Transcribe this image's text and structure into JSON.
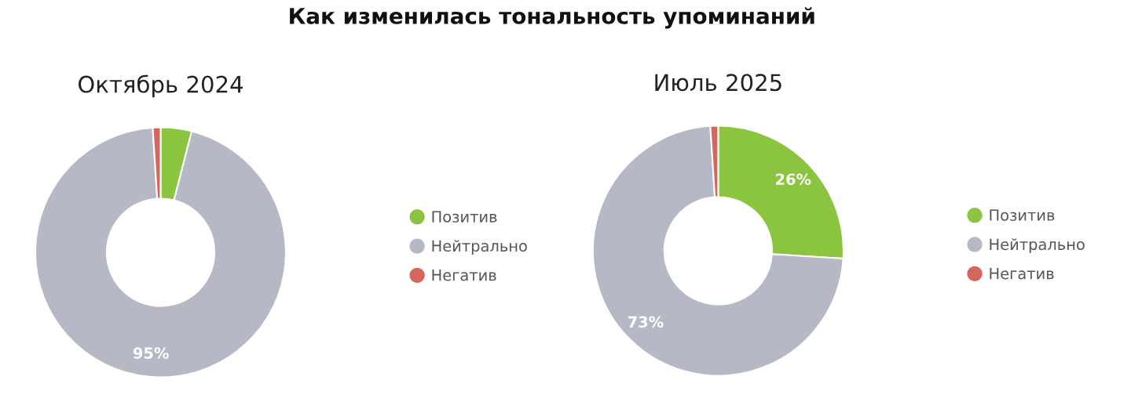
{
  "chart_data": [
    {
      "type": "donut",
      "title": "Как изменилась тональность упоминаний",
      "subtitle": "Октябрь 2024",
      "categories": [
        "Позитив",
        "Нейтрально",
        "Негатив"
      ],
      "values": [
        4,
        95,
        1
      ],
      "colors": [
        "#8bc540",
        "#b6b8c5",
        "#d4675d"
      ],
      "value_labels": [
        null,
        "95%",
        null
      ],
      "legend": "right"
    },
    {
      "type": "donut",
      "subtitle": "Июль 2025",
      "categories": [
        "Позитив",
        "Нейтрально",
        "Негатив"
      ],
      "values": [
        26,
        73,
        1
      ],
      "colors": [
        "#8bc540",
        "#b6b8c5",
        "#d4675d"
      ],
      "value_labels": [
        "26%",
        "73%",
        null
      ],
      "legend": "right"
    }
  ]
}
